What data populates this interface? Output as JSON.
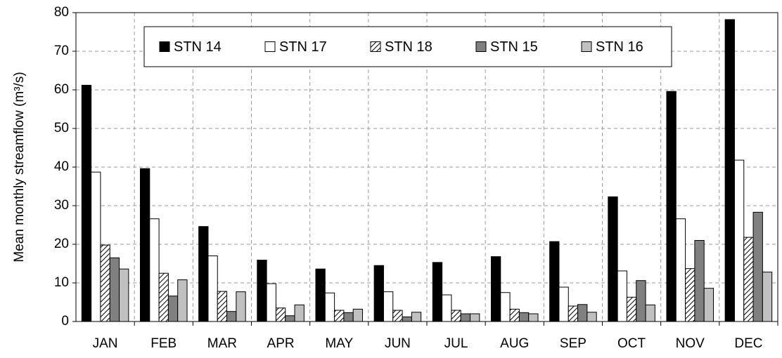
{
  "chart_data": {
    "type": "bar",
    "y_label": "Mean monthly streamflow (m³/s)",
    "categories": [
      "JAN",
      "FEB",
      "MAR",
      "APR",
      "MAY",
      "JUN",
      "JUL",
      "AUG",
      "SEP",
      "OCT",
      "NOV",
      "DEC"
    ],
    "series": [
      {
        "name": "STN 14",
        "color": "#000000",
        "values": [
          61.2,
          39.6,
          24.6,
          15.9,
          13.6,
          14.5,
          15.3,
          16.8,
          20.7,
          32.3,
          59.6,
          78.2
        ]
      },
      {
        "name": "STN 17",
        "color": "#ffffff",
        "values": [
          38.7,
          26.6,
          17.0,
          9.8,
          7.4,
          7.7,
          6.9,
          7.5,
          8.9,
          13.1,
          26.6,
          41.8
        ]
      },
      {
        "name": "STN 18",
        "color": "#ffffff",
        "pattern": "hatch",
        "values": [
          19.8,
          12.5,
          7.8,
          3.5,
          2.9,
          2.9,
          2.9,
          3.2,
          4.0,
          6.3,
          13.7,
          21.8
        ]
      },
      {
        "name": "STN 15",
        "color": "#808080",
        "values": [
          16.5,
          6.6,
          2.6,
          1.5,
          2.3,
          1.2,
          2.0,
          2.3,
          4.4,
          10.6,
          21.0,
          28.3
        ]
      },
      {
        "name": "STN 16",
        "color": "#c0c0c0",
        "values": [
          13.6,
          10.8,
          7.7,
          4.3,
          3.2,
          2.4,
          2.0,
          2.0,
          2.4,
          4.3,
          8.6,
          12.8
        ]
      }
    ],
    "ylim": [
      0,
      80
    ],
    "yticks": [
      0,
      10,
      20,
      30,
      40,
      50,
      60,
      70,
      80
    ],
    "grid": true,
    "legend": "top"
  }
}
